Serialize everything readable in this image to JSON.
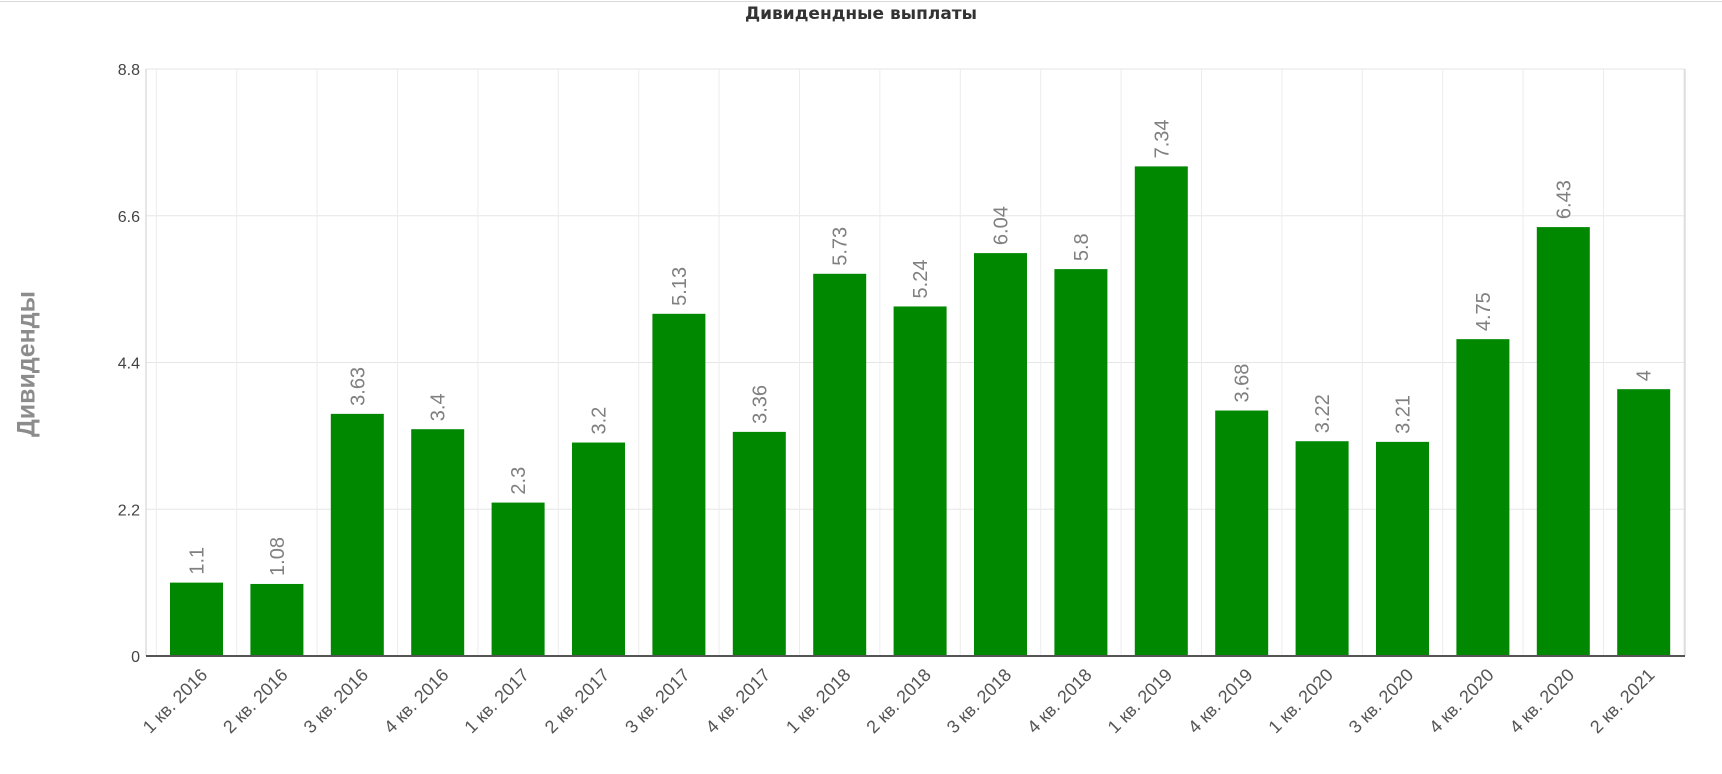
{
  "chart_data": {
    "type": "bar",
    "title": "Дивидендные выплаты",
    "xlabel": "",
    "ylabel": "Дивиденды",
    "ylim": [
      0,
      8.8
    ],
    "yticks": [
      "0",
      "2.2",
      "4.4",
      "6.6",
      "8.8"
    ],
    "grid": true,
    "bar_color": "#008800",
    "categories": [
      "1 кв. 2016",
      "2 кв. 2016",
      "3 кв. 2016",
      "4 кв. 2016",
      "1 кв. 2017",
      "2 кв. 2017",
      "3 кв. 2017",
      "4 кв. 2017",
      "1 кв. 2018",
      "2 кв. 2018",
      "3 кв. 2018",
      "4 кв. 2018",
      "1 кв. 2019",
      "4 кв. 2019",
      "1 кв. 2020",
      "3 кв. 2020",
      "4 кв. 2020",
      "4 кв. 2020",
      "2 кв. 2021"
    ],
    "values": [
      1.1,
      1.08,
      3.63,
      3.4,
      2.3,
      3.2,
      5.13,
      3.36,
      5.73,
      5.24,
      6.04,
      5.8,
      7.34,
      3.68,
      3.22,
      3.21,
      4.75,
      6.43,
      4
    ],
    "data_labels": [
      "1.1",
      "1.08",
      "3.63",
      "3.4",
      "2.3",
      "3.2",
      "5.13",
      "3.36",
      "5.73",
      "5.24",
      "6.04",
      "5.8",
      "7.34",
      "3.68",
      "3.22",
      "3.21",
      "4.75",
      "6.43",
      "4"
    ]
  }
}
